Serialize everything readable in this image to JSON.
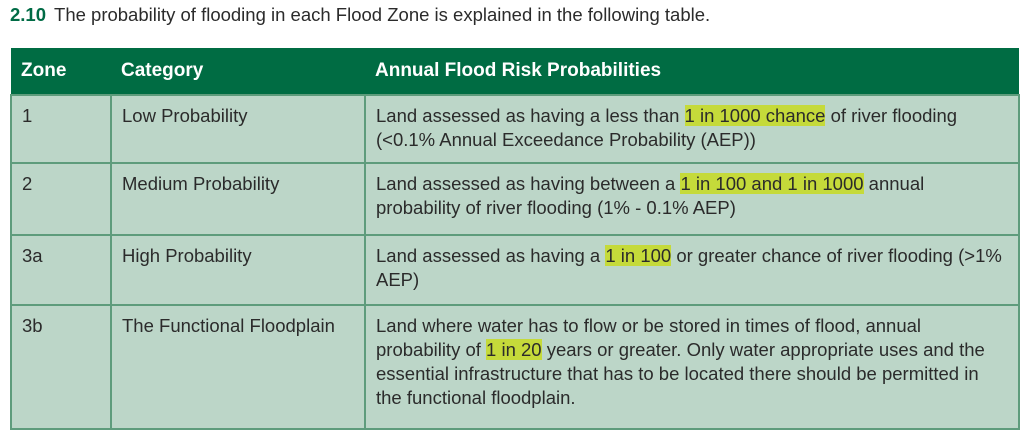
{
  "intro": {
    "number": "2.10",
    "text": "The probability of flooding in each Flood Zone is explained in the following table."
  },
  "table": {
    "headers": [
      "Zone",
      "Category",
      "Annual Flood Risk Probabilities"
    ],
    "rows": [
      {
        "zone": "1",
        "category": "Low Probability",
        "before": "Land assessed as having a less than ",
        "highlight": "1 in 1000 chance",
        "after": " of river flooding (<0.1% Annual Exceedance Probability (AEP))"
      },
      {
        "zone": "2",
        "category": "Medium Probability",
        "before": "Land assessed as having between a ",
        "highlight": "1 in 100 and 1 in 1000",
        "after": " annual probability of river flooding (1% - 0.1% AEP)"
      },
      {
        "zone": "3a",
        "category": "High Probability",
        "before": "Land assessed as having a ",
        "highlight": "1 in 100",
        "after": " or greater chance of river flooding (>1% AEP)"
      },
      {
        "zone": "3b",
        "category": "The Functional Floodplain",
        "before": "Land where water has to flow or be stored in times of flood, annual probability of ",
        "highlight": "1 in 20",
        "after": " years or greater.  Only water appropriate uses and the essential infrastructure that has to be located there should be permitted in the functional floodplain."
      }
    ]
  },
  "colors": {
    "header": "#006c43",
    "cell": "#bcd6c8",
    "highlight": "#c5da3a"
  }
}
